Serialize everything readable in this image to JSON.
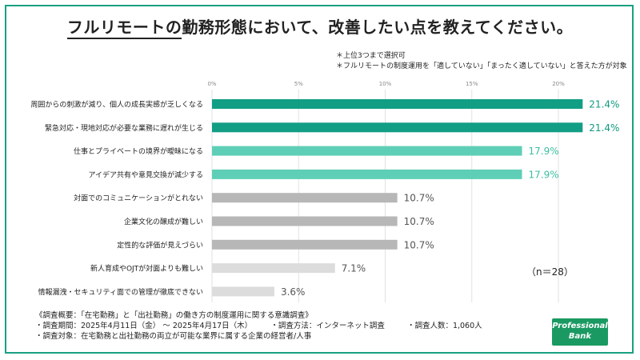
{
  "title": {
    "main": "フルリモートの",
    "rest": "勤務形態において、改善したい点を教えてください。"
  },
  "notes": [
    "＊上位3つまで選択可",
    "＊フルリモートの制度運用を「適していない」「まったく適していない」と答えた方が対象"
  ],
  "n_label": "（n＝28）",
  "survey": {
    "line1": "《調査概要：「在宅勤務」と「出社勤務」の働き方の制度運用に関する意識調査》",
    "period": "・調査期間：2025年4月11日（金） 〜 2025年4月17日（木）",
    "method": "・調査方法：インターネット調査",
    "people": "・調査人数：1,060人",
    "target": "・調査対象：在宅勤務と出社勤務の両立が可能な業界に属する企業の経営者/人事"
  },
  "logo": {
    "line1": "Professional",
    "line2": "Bank"
  },
  "colors": {
    "dark": "#129e85",
    "medium": "#5ecfb6",
    "gray": "#b7b7b7",
    "light": "#dcdcdc",
    "label_dark": "#0f9a80",
    "label_medium": "#3cbfa3",
    "label_gray": "#555555",
    "frame": "#1aa083"
  },
  "chart_data": {
    "type": "bar",
    "orientation": "horizontal",
    "x_ticks": [
      "0%",
      "5%",
      "10%",
      "15%",
      "20%"
    ],
    "xlim": [
      0,
      22.5
    ],
    "grid": true,
    "categories": [
      "周囲からの刺激が減り、個人の成長実感が乏しくなる",
      "緊急対応・現地対応が必要な業務に遅れが生じる",
      "仕事とプライベートの境界が曖昧になる",
      "アイデア共有や意見交換が減少する",
      "対面でのコミュニケーションがとれない",
      "企業文化の醸成が難しい",
      "定性的な評価が見えづらい",
      "新人育成やOJTが対面よりも難しい",
      "情報漏洩・セキュリティ面での管理が徹底できない"
    ],
    "values": [
      21.4,
      21.4,
      17.9,
      17.9,
      10.7,
      10.7,
      10.7,
      7.1,
      3.6
    ],
    "value_labels": [
      "21.4%",
      "21.4%",
      "17.9%",
      "17.9%",
      "10.7%",
      "10.7%",
      "10.7%",
      "7.1%",
      "3.6%"
    ],
    "bar_colors": [
      "dark",
      "dark",
      "medium",
      "medium",
      "gray",
      "gray",
      "gray",
      "light",
      "light"
    ]
  }
}
